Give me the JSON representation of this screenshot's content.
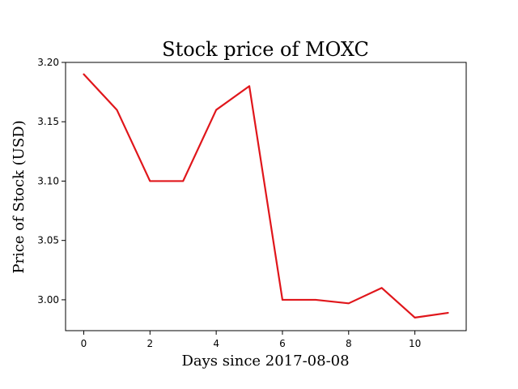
{
  "chart_data": {
    "type": "line",
    "title": "Stock price of MOXC",
    "xlabel": "Days since 2017-08-08",
    "ylabel": "Price of Stock (USD)",
    "xlim": [
      -0.55,
      11.55
    ],
    "ylim": [
      2.974,
      3.2
    ],
    "xticks": [
      0,
      2,
      4,
      6,
      8,
      10
    ],
    "yticks": [
      3.0,
      3.05,
      3.1,
      3.15,
      3.2
    ],
    "xtick_labels": [
      "0",
      "2",
      "4",
      "6",
      "8",
      "10"
    ],
    "ytick_labels": [
      "3.00",
      "3.05",
      "3.10",
      "3.15",
      "3.20"
    ],
    "grid": false,
    "series": [
      {
        "color": "#e0161b",
        "x": [
          0,
          1,
          2,
          3,
          4,
          5,
          6,
          7,
          8,
          9,
          10,
          11
        ],
        "y": [
          3.19,
          3.16,
          3.1,
          3.1,
          3.16,
          3.18,
          3.0,
          3.0,
          2.997,
          3.01,
          2.985,
          2.989
        ]
      }
    ]
  }
}
